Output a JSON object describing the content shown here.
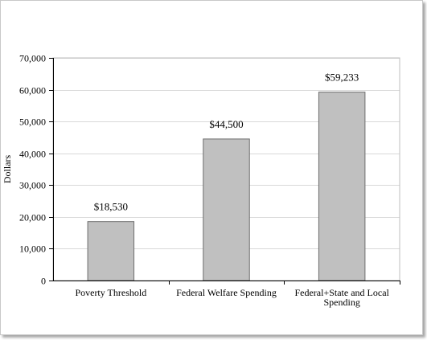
{
  "chart_data": {
    "type": "bar",
    "categories": [
      [
        "Poverty Threshold"
      ],
      [
        "Federal Welfare Spending"
      ],
      [
        "Federal+State and Local",
        "Spending"
      ]
    ],
    "values": [
      18530,
      44500,
      59233
    ],
    "data_labels": [
      "$18,530",
      "$44,500",
      "$59,233"
    ],
    "ylabel": "Dollars",
    "ylim": [
      0,
      70000
    ],
    "yticks": [
      0,
      10000,
      20000,
      30000,
      40000,
      50000,
      60000,
      70000
    ],
    "ytick_labels": [
      "0",
      "10,000",
      "20,000",
      "30,000",
      "40,000",
      "50,000",
      "60,000",
      "70,000"
    ],
    "grid": true,
    "legend": "none",
    "colors": {
      "bar_fill": "#c0c0c0",
      "bar_stroke": "#6e6e6e",
      "grid": "#d9d9d9",
      "axis": "#000000",
      "plot_border": "#bfbfbf"
    }
  }
}
